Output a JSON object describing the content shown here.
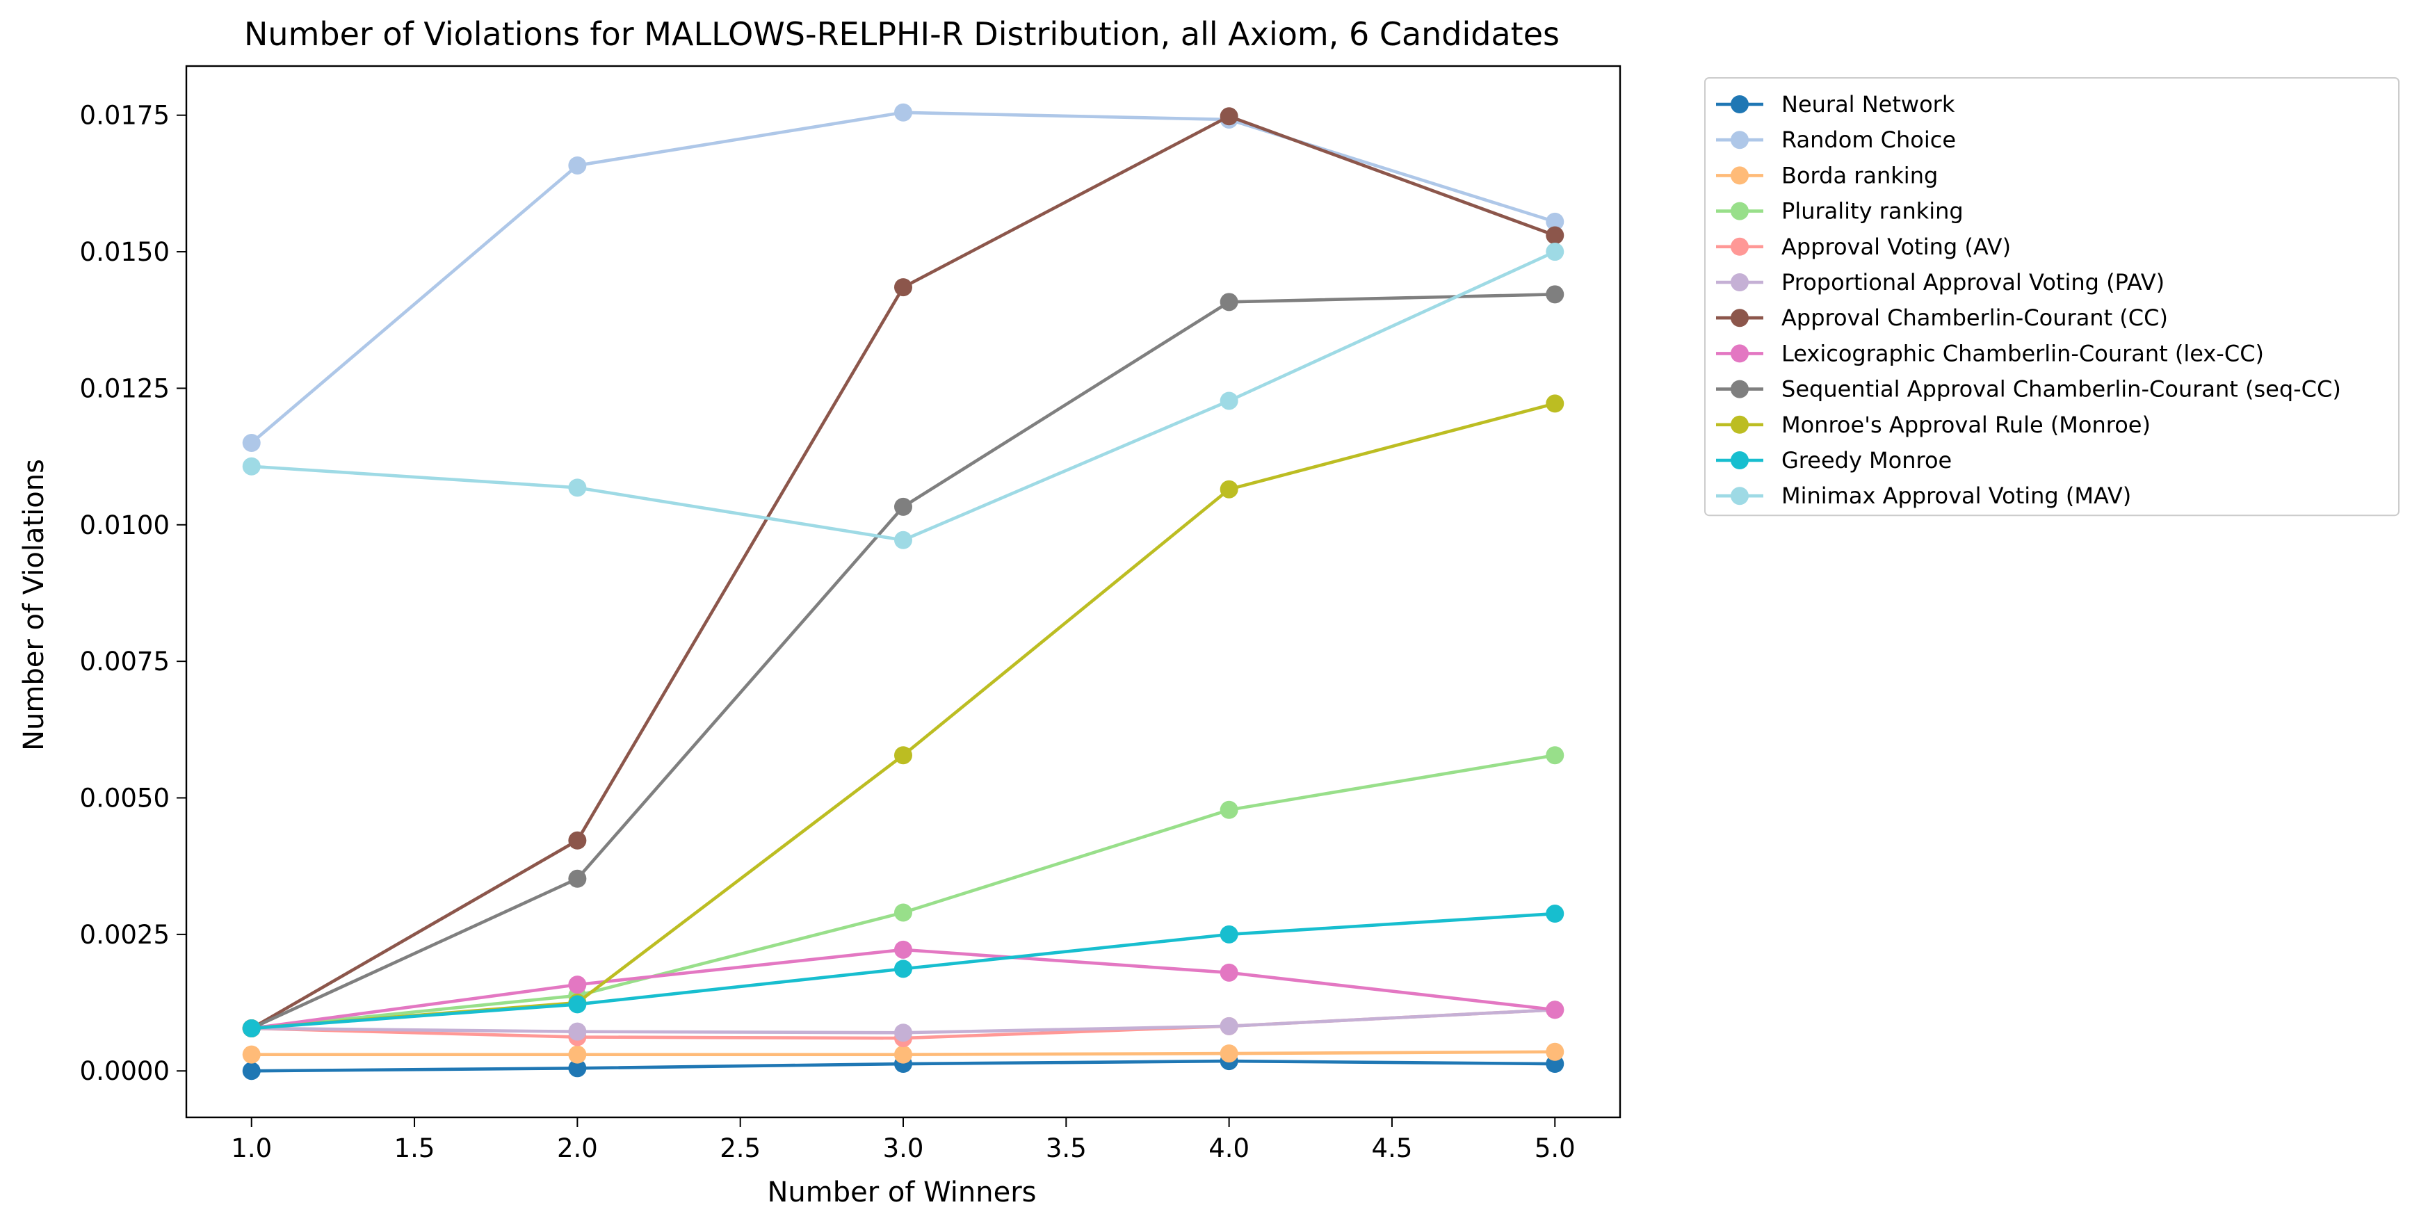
{
  "chart_data": {
    "type": "line",
    "title": "Number of Violations for MALLOWS-RELPHI-R Distribution, all Axiom, 6 Candidates",
    "xlabel": "Number of Winners",
    "ylabel": "Number of Violations",
    "xlim": [
      0.8,
      5.2
    ],
    "ylim": [
      -0.00085,
      0.0184
    ],
    "x_ticks": [
      "1.0",
      "1.5",
      "2.0",
      "2.5",
      "3.0",
      "3.5",
      "4.0",
      "4.5",
      "5.0"
    ],
    "y_ticks": [
      "0.0000",
      "0.0025",
      "0.0050",
      "0.0075",
      "0.0100",
      "0.0125",
      "0.0150",
      "0.0175"
    ],
    "grid": false,
    "legend_position": "outside-right-top",
    "x": [
      1,
      2,
      3,
      4,
      5
    ],
    "series": [
      {
        "name": "Neural Network",
        "color": "#1f77b4",
        "values": [
          0.0,
          5e-05,
          0.00013,
          0.00018,
          0.00013
        ]
      },
      {
        "name": "Random Choice",
        "color": "#aec7e8",
        "values": [
          0.0115,
          0.01658,
          0.01755,
          0.01742,
          0.01555
        ]
      },
      {
        "name": "Borda ranking",
        "color": "#ffbb78",
        "values": [
          0.0003,
          0.0003,
          0.0003,
          0.00032,
          0.00035
        ]
      },
      {
        "name": "Plurality ranking",
        "color": "#98df8a",
        "values": [
          0.00078,
          0.00138,
          0.0029,
          0.00478,
          0.00578
        ]
      },
      {
        "name": "Approval Voting (AV)",
        "color": "#ff9896",
        "values": [
          0.00078,
          0.00062,
          0.0006,
          0.00082,
          0.00112
        ]
      },
      {
        "name": "Proportional Approval Voting (PAV)",
        "color": "#c5b0d5",
        "values": [
          0.00078,
          0.00072,
          0.0007,
          0.00082,
          0.00112
        ]
      },
      {
        "name": "Approval Chamberlin-Courant (CC)",
        "color": "#8c564b",
        "values": [
          0.00078,
          0.00422,
          0.01435,
          0.01748,
          0.0153
        ]
      },
      {
        "name": "Lexicographic Chamberlin-Courant (lex-CC)",
        "color": "#e377c2",
        "values": [
          0.00078,
          0.00158,
          0.00222,
          0.0018,
          0.00112
        ]
      },
      {
        "name": "Sequential Approval Chamberlin-Courant (seq-CC)",
        "color": "#7f7f7f",
        "values": [
          0.00078,
          0.00352,
          0.01033,
          0.01408,
          0.01422
        ]
      },
      {
        "name": "Monroe's Approval Rule (Monroe)",
        "color": "#bcbd22",
        "values": [
          0.00078,
          0.00125,
          0.00578,
          0.01065,
          0.01222
        ]
      },
      {
        "name": "Greedy Monroe",
        "color": "#17becf",
        "values": [
          0.00078,
          0.00122,
          0.00187,
          0.0025,
          0.00288
        ]
      },
      {
        "name": "Minimax Approval Voting (MAV)",
        "color": "#9edae5",
        "values": [
          0.01107,
          0.01068,
          0.00972,
          0.01227,
          0.015
        ]
      }
    ]
  }
}
